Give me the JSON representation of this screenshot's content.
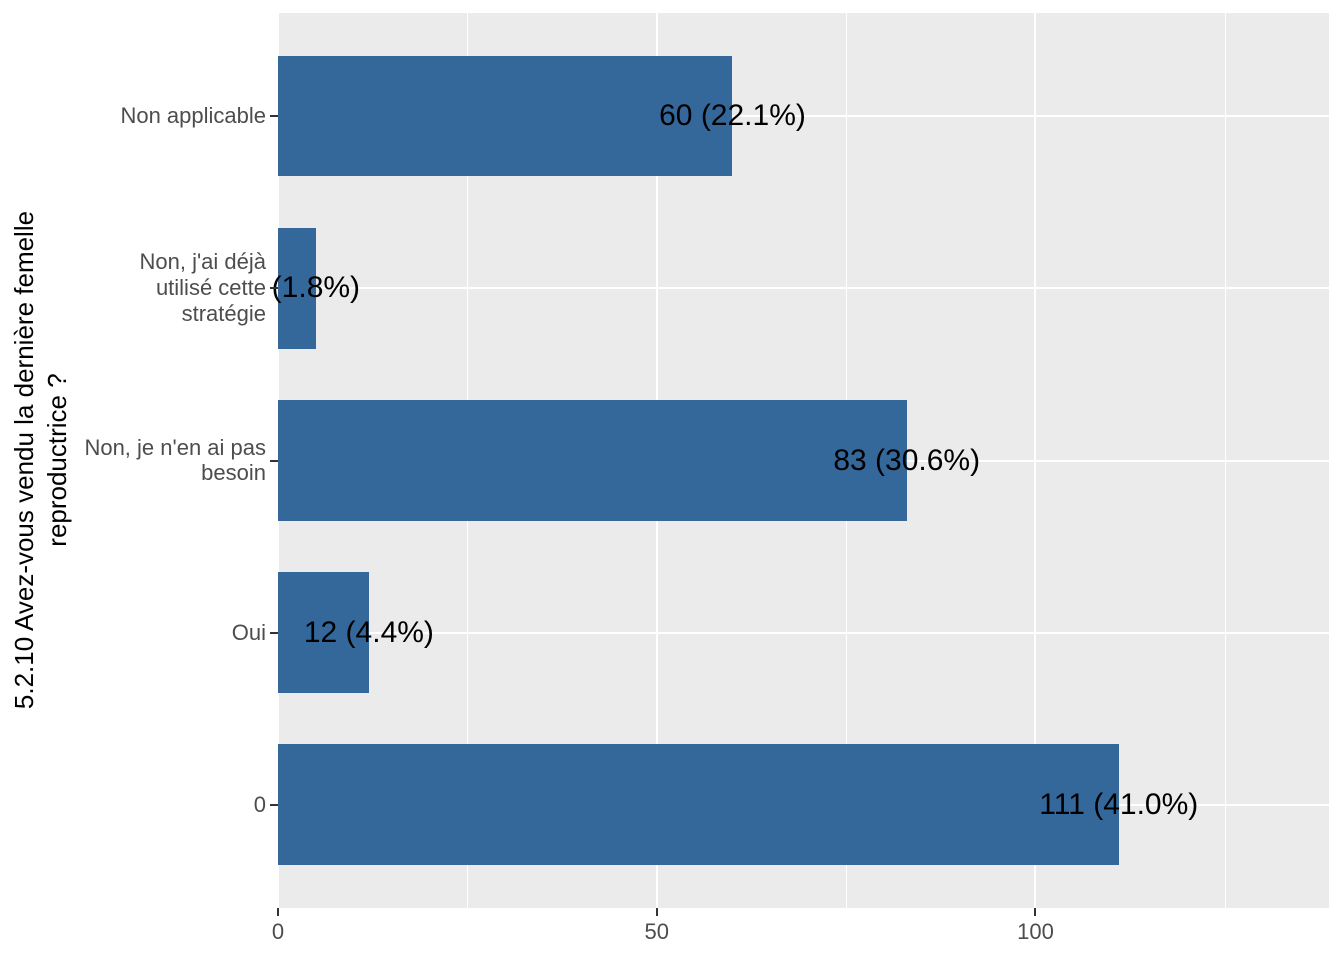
{
  "chart_data": {
    "type": "bar",
    "orientation": "horizontal",
    "title": "",
    "xlabel": "",
    "ylabel": "5.2.10 Avez-vous vendu la dernière femelle\nreproductrice ?",
    "categories": [
      "Non applicable",
      "Non, j'ai déjà\nutilisé cette\nstratégie",
      "Non, je n'en ai pas\nbesoin",
      "Oui",
      "0"
    ],
    "values": [
      60,
      5,
      83,
      12,
      111
    ],
    "bar_labels": [
      "60 (22.1%)",
      "(1.8%)",
      "83 (30.6%)",
      "12 (4.4%)",
      "111 (41.0%)"
    ],
    "percentages": [
      22.1,
      1.8,
      30.6,
      4.4,
      41.0
    ],
    "x_ticks": [
      0,
      50,
      100
    ],
    "x_minor_gridlines": [
      25,
      75,
      125
    ],
    "xlim": [
      0,
      138.75
    ],
    "grid": true,
    "legend": "none",
    "colors": {
      "bar": "#34679A",
      "panel_background": "#EBEBEB",
      "gridline": "#FFFFFF",
      "axis_text": "#4D4D4D",
      "axis_title": "#000000",
      "bar_label_text": "#000000",
      "tick_mark": "#333333"
    }
  }
}
